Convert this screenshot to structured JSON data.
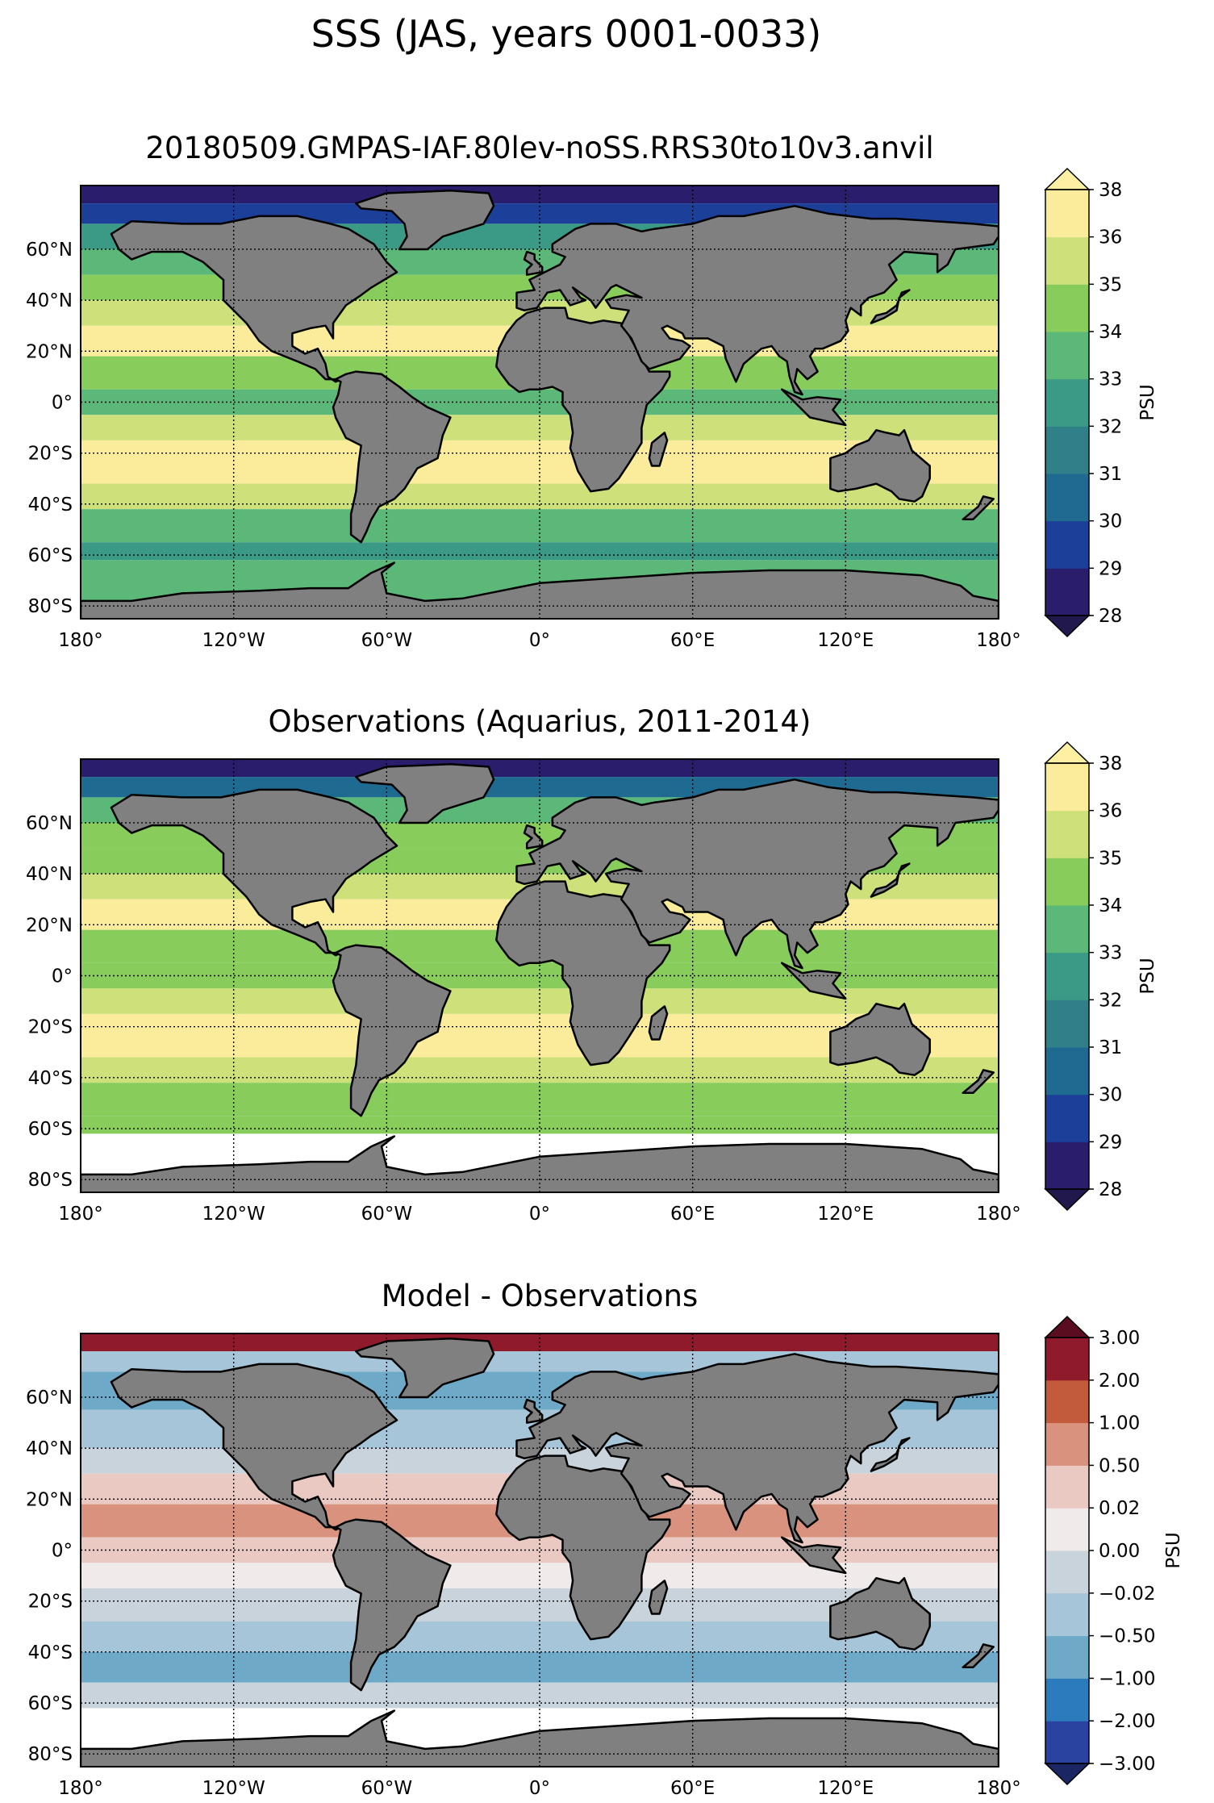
{
  "figure": {
    "suptitle": "SSS (JAS, years 0001-0033)"
  },
  "colors": {
    "land": "#808080",
    "no_data": "#ffffff",
    "coast": "#000000"
  },
  "chart_data": [
    {
      "type": "heatmap",
      "projection": "PlateCarree",
      "title": "20180509.GMPAS-IAF.80lev-noSS.RRS30to10v3.anvil",
      "xlim": [
        -180,
        180
      ],
      "ylim": [
        -85,
        85
      ],
      "x_ticks": [
        -180,
        -120,
        -60,
        0,
        60,
        120,
        180
      ],
      "y_ticks": [
        -80,
        -60,
        -40,
        -20,
        0,
        20,
        40,
        60
      ],
      "x_tick_labels": [
        "180°",
        "120°W",
        "60°W",
        "0°",
        "60°E",
        "120°E",
        "180°"
      ],
      "y_tick_labels": [
        "80°S",
        "60°S",
        "40°S",
        "20°S",
        "0°",
        "20°N",
        "40°N",
        "60°N"
      ],
      "grid": true,
      "colorbar": {
        "label": "PSU",
        "levels": [
          28,
          29,
          30,
          31,
          32,
          33,
          34,
          35,
          36,
          38
        ],
        "tick_labels": [
          "28",
          "29",
          "30",
          "31",
          "32",
          "33",
          "34",
          "35",
          "36",
          "38"
        ],
        "colors": [
          "#2a1d6b",
          "#1c3f99",
          "#1f6a90",
          "#2f8088",
          "#3b9a85",
          "#5cb878",
          "#88cc5c",
          "#cde07a",
          "#fbec9b"
        ],
        "extend": "both",
        "under_color": "#21184e",
        "over_color": "#fdf0a2"
      }
    },
    {
      "type": "heatmap",
      "projection": "PlateCarree",
      "title": "Observations (Aquarius, 2011-2014)",
      "xlim": [
        -180,
        180
      ],
      "ylim": [
        -85,
        85
      ],
      "x_ticks": [
        -180,
        -120,
        -60,
        0,
        60,
        120,
        180
      ],
      "y_ticks": [
        -80,
        -60,
        -40,
        -20,
        0,
        20,
        40,
        60
      ],
      "x_tick_labels": [
        "180°",
        "120°W",
        "60°W",
        "0°",
        "60°E",
        "120°E",
        "180°"
      ],
      "y_tick_labels": [
        "80°S",
        "60°S",
        "40°S",
        "20°S",
        "0°",
        "20°N",
        "40°N",
        "60°N"
      ],
      "grid": true,
      "colorbar": {
        "label": "PSU",
        "levels": [
          28,
          29,
          30,
          31,
          32,
          33,
          34,
          35,
          36,
          38
        ],
        "tick_labels": [
          "28",
          "29",
          "30",
          "31",
          "32",
          "33",
          "34",
          "35",
          "36",
          "38"
        ],
        "colors": [
          "#2a1d6b",
          "#1c3f99",
          "#1f6a90",
          "#2f8088",
          "#3b9a85",
          "#5cb878",
          "#88cc5c",
          "#cde07a",
          "#fbec9b"
        ],
        "extend": "both",
        "under_color": "#21184e",
        "over_color": "#fdf0a2"
      }
    },
    {
      "type": "heatmap",
      "projection": "PlateCarree",
      "title": "Model - Observations",
      "xlim": [
        -180,
        180
      ],
      "ylim": [
        -85,
        85
      ],
      "x_ticks": [
        -180,
        -120,
        -60,
        0,
        60,
        120,
        180
      ],
      "y_ticks": [
        -80,
        -60,
        -40,
        -20,
        0,
        20,
        40,
        60
      ],
      "x_tick_labels": [
        "180°",
        "120°W",
        "60°W",
        "0°",
        "60°E",
        "120°E",
        "180°"
      ],
      "y_tick_labels": [
        "80°S",
        "60°S",
        "40°S",
        "20°S",
        "0°",
        "20°N",
        "40°N",
        "60°N"
      ],
      "grid": true,
      "colorbar": {
        "label": "PSU",
        "levels": [
          -3.0,
          -2.0,
          -1.0,
          -0.5,
          -0.02,
          0.0,
          0.02,
          0.5,
          1.0,
          2.0,
          3.0
        ],
        "tick_labels": [
          "−3.00",
          "−2.00",
          "−1.00",
          "−0.50",
          "−0.02",
          "0.00",
          "0.02",
          "0.50",
          "1.00",
          "2.00",
          "3.00"
        ],
        "colors": [
          "#2a43a0",
          "#2b7bbd",
          "#6fa9c8",
          "#a6c5d8",
          "#c9d3dc",
          "#f1eaea",
          "#e9c9c2",
          "#d8927d",
          "#c25b3b",
          "#8e1a2c"
        ],
        "extend": "both",
        "under_color": "#1a2764",
        "over_color": "#5a0d1e"
      }
    }
  ]
}
